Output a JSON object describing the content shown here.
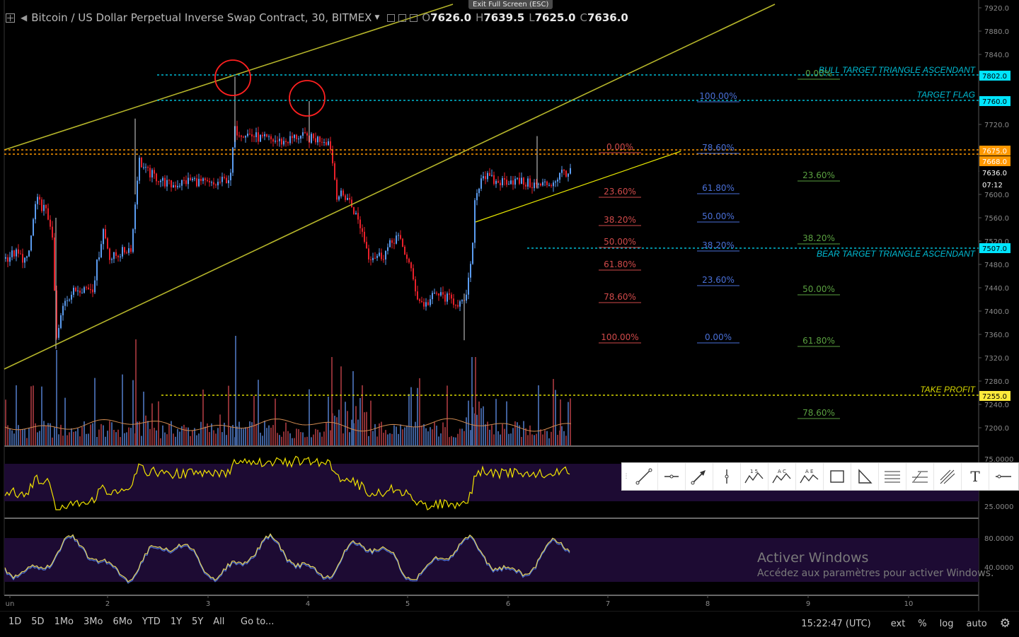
{
  "header": {
    "title": "Bitcoin / US Dollar Perpetual Inverse Swap Contract, 30, BITMEX",
    "open_label": "O",
    "open": "7626.0",
    "high_label": "H",
    "high": "7639.5",
    "low_label": "L",
    "low": "7625.0",
    "close_label": "C",
    "close": "7636.0"
  },
  "fullscreen_hint": "Exit Full Screen (ESC)",
  "price_axis": {
    "ticks": [
      "7920.0",
      "7880.0",
      "7840.0",
      "7800.0",
      "7760.0",
      "7720.0",
      "7680.0",
      "7640.0",
      "7600.0",
      "7560.0",
      "7520.0",
      "7480.0",
      "7440.0",
      "7400.0",
      "7360.0",
      "7320.0",
      "7280.0",
      "7240.0",
      "7200.0"
    ],
    "badges": [
      {
        "text": "7802.0",
        "bg": "#00e5ff",
        "fg": "#000000"
      },
      {
        "text": "7760.0",
        "bg": "#00e5ff",
        "fg": "#000000"
      },
      {
        "text": "7675.0",
        "bg": "#ff9800",
        "fg": "#ffffff"
      },
      {
        "text": "7668.0",
        "bg": "#ff9800",
        "fg": "#ffffff"
      },
      {
        "text": "7636.0",
        "bg": "#000000",
        "fg": "#ffffff"
      },
      {
        "text": "07:12",
        "bg": "#000000",
        "fg": "#ffffff"
      },
      {
        "text": "7507.0",
        "bg": "#00e5ff",
        "fg": "#000000"
      },
      {
        "text": "7255.0",
        "bg": "#ffeb3b",
        "fg": "#000000"
      }
    ]
  },
  "rsi_axis": [
    "75.0000",
    "25.0000"
  ],
  "stoch_axis": [
    "80.0000",
    "40.0000"
  ],
  "time_axis": [
    "un",
    "2",
    "3",
    "4",
    "5",
    "6",
    "7",
    "8",
    "9",
    "10"
  ],
  "annotations": {
    "bull_target": "BULL TARGET TRIANGLE ASCENDANT",
    "target_flag": "TARGET FLAG",
    "bear_target": "BEAR TARGET TRIANGLE ASCENDANT",
    "take_profit": "TAKE PROFIT"
  },
  "fib_red": [
    "0.00%",
    "23.60%",
    "38.20%",
    "50.00%",
    "61.80%",
    "78.60%",
    "100.00%"
  ],
  "fib_blue": [
    "100.00%",
    "78.60%",
    "61.80%",
    "50.00%",
    "38.20%",
    "23.60%",
    "0.00%"
  ],
  "fib_green": [
    "0.00%",
    "23.60%",
    "38.20%",
    "50.00%",
    "61.80%",
    "78.60%"
  ],
  "colors": {
    "up": "#5b9cf0",
    "down": "#e8202a",
    "channel": "#b5b52a",
    "cyan": "#00bcd4",
    "orange": "#ff9800",
    "yellow": "#d8d800",
    "rsi": "#f0e200",
    "osc_bg": "#1d0b33"
  },
  "toolbar": {
    "tools": [
      "trend-line-icon",
      "horizontal-ray-icon",
      "arrow-icon",
      "vertical-line-icon",
      "elliott-wave-icon",
      "abcd-pattern-icon",
      "triangle-pattern-icon",
      "rectangle-icon",
      "triangle-icon",
      "fib-retracement-icon",
      "fib-extension-icon",
      "pitchfork-icon",
      "text-icon",
      "horizontal-line-icon"
    ],
    "labels": {
      "elliott": "1 5",
      "abcd": "A C",
      "tri": "A E",
      "text": "T"
    }
  },
  "bottom": {
    "ranges": [
      "1D",
      "5D",
      "1Mo",
      "3Mo",
      "6Mo",
      "YTD",
      "1Y",
      "5Y",
      "All"
    ],
    "goto": "Go to...",
    "clock": "15:22:47 (UTC)",
    "ext": "ext",
    "pct": "%",
    "log": "log",
    "auto": "auto"
  },
  "watermark": {
    "title": "Activer Windows",
    "sub": "Accédez aux paramètres pour activer Windows."
  }
}
